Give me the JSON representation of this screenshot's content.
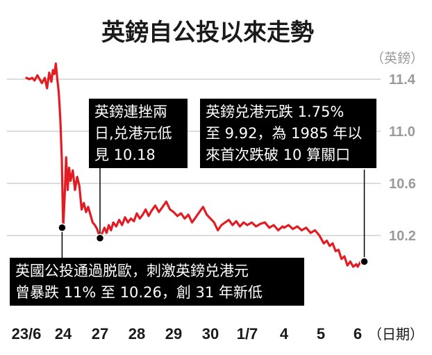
{
  "chart_data": {
    "type": "line",
    "title": "英鎊自公投以來走勢",
    "ylabel": "（英鎊）",
    "xlabel": "（日期）",
    "ylim": [
      9.8,
      11.5
    ],
    "yticks": [
      "11.4",
      "11.0",
      "10.6",
      "10.2"
    ],
    "ytick_values": [
      11.4,
      11.0,
      10.6,
      10.2
    ],
    "categories": [
      "23/6",
      "24",
      "27",
      "28",
      "29",
      "30",
      "1/7",
      "4",
      "5",
      "6"
    ],
    "grid": true,
    "line_color": "#e31b23",
    "series": [
      {
        "x": [
          0.0,
          0.08,
          0.16,
          0.22,
          0.3,
          0.36,
          0.42,
          0.5,
          0.56,
          0.62,
          0.68,
          0.72,
          0.76,
          0.8,
          0.84,
          0.88,
          0.92,
          0.96,
          1.0,
          1.04,
          1.08,
          1.12,
          1.16,
          1.2,
          1.26,
          1.32,
          1.38,
          1.44,
          1.5,
          1.56,
          1.62,
          1.68,
          1.74,
          1.8,
          1.86,
          1.92,
          2.0,
          2.06,
          2.12,
          2.18,
          2.24,
          2.3,
          2.36,
          2.44,
          2.52,
          2.6,
          2.68,
          2.76,
          2.84,
          2.92,
          3.0,
          3.08,
          3.16,
          3.24,
          3.32,
          3.4,
          3.5,
          3.6,
          3.7,
          3.8,
          3.9,
          4.0,
          4.1,
          4.2,
          4.3,
          4.4,
          4.5,
          4.6,
          4.7,
          4.8,
          4.9,
          5.0,
          5.1,
          5.2,
          5.3,
          5.4,
          5.5,
          5.6,
          5.7,
          5.8,
          5.9,
          6.0,
          6.12,
          6.24,
          6.36,
          6.48,
          6.6,
          6.72,
          6.84,
          6.96,
          7.0,
          7.12,
          7.24,
          7.36,
          7.48,
          7.6,
          7.72,
          7.84,
          7.96,
          8.0,
          8.08,
          8.16,
          8.24,
          8.32,
          8.4,
          8.48,
          8.56,
          8.64,
          8.72,
          8.8,
          8.88,
          8.96,
          9.0,
          9.06,
          9.12,
          9.18
        ],
        "values": [
          11.41,
          11.4,
          11.41,
          11.39,
          11.43,
          11.4,
          11.37,
          11.41,
          11.33,
          11.45,
          11.38,
          11.47,
          11.44,
          11.52,
          11.4,
          11.3,
          11.1,
          10.8,
          10.26,
          10.5,
          10.8,
          10.55,
          10.72,
          10.62,
          10.7,
          10.55,
          10.65,
          10.58,
          10.4,
          10.45,
          10.38,
          10.42,
          10.36,
          10.3,
          10.28,
          10.25,
          10.18,
          10.22,
          10.26,
          10.22,
          10.28,
          10.24,
          10.3,
          10.27,
          10.32,
          10.28,
          10.34,
          10.3,
          10.33,
          10.31,
          10.37,
          10.33,
          10.36,
          10.4,
          10.35,
          10.39,
          10.43,
          10.38,
          10.42,
          10.46,
          10.4,
          10.38,
          10.35,
          10.37,
          10.33,
          10.36,
          10.3,
          10.34,
          10.38,
          10.42,
          10.36,
          10.33,
          10.3,
          10.24,
          10.28,
          10.3,
          10.32,
          10.28,
          10.31,
          10.27,
          10.3,
          10.28,
          10.3,
          10.27,
          10.29,
          10.3,
          10.26,
          10.28,
          10.24,
          10.27,
          10.26,
          10.28,
          10.25,
          10.27,
          10.24,
          10.26,
          10.22,
          10.24,
          10.2,
          10.18,
          10.14,
          10.16,
          10.12,
          10.14,
          10.08,
          10.09,
          10.02,
          10.04,
          9.97,
          10.0,
          9.96,
          9.98,
          9.96,
          9.99,
          10.02,
          10.0
        ]
      }
    ],
    "markers": [
      {
        "x": 0.97,
        "y": 10.26
      },
      {
        "x": 2.0,
        "y": 10.18
      },
      {
        "x": 9.18,
        "y": 10.0
      }
    ],
    "annotations": [
      "英鎊連挫兩\n日,兑港元低\n見 10.18",
      "英鎊兑港元跌 1.75%\n至 9.92，為 1985 年以\n來首次跌破 10 算關口",
      "英國公投通過脱歐，刺激英鎊兑港元\n曾暴跌 11% 至 10.26，創 31 年新低"
    ]
  }
}
